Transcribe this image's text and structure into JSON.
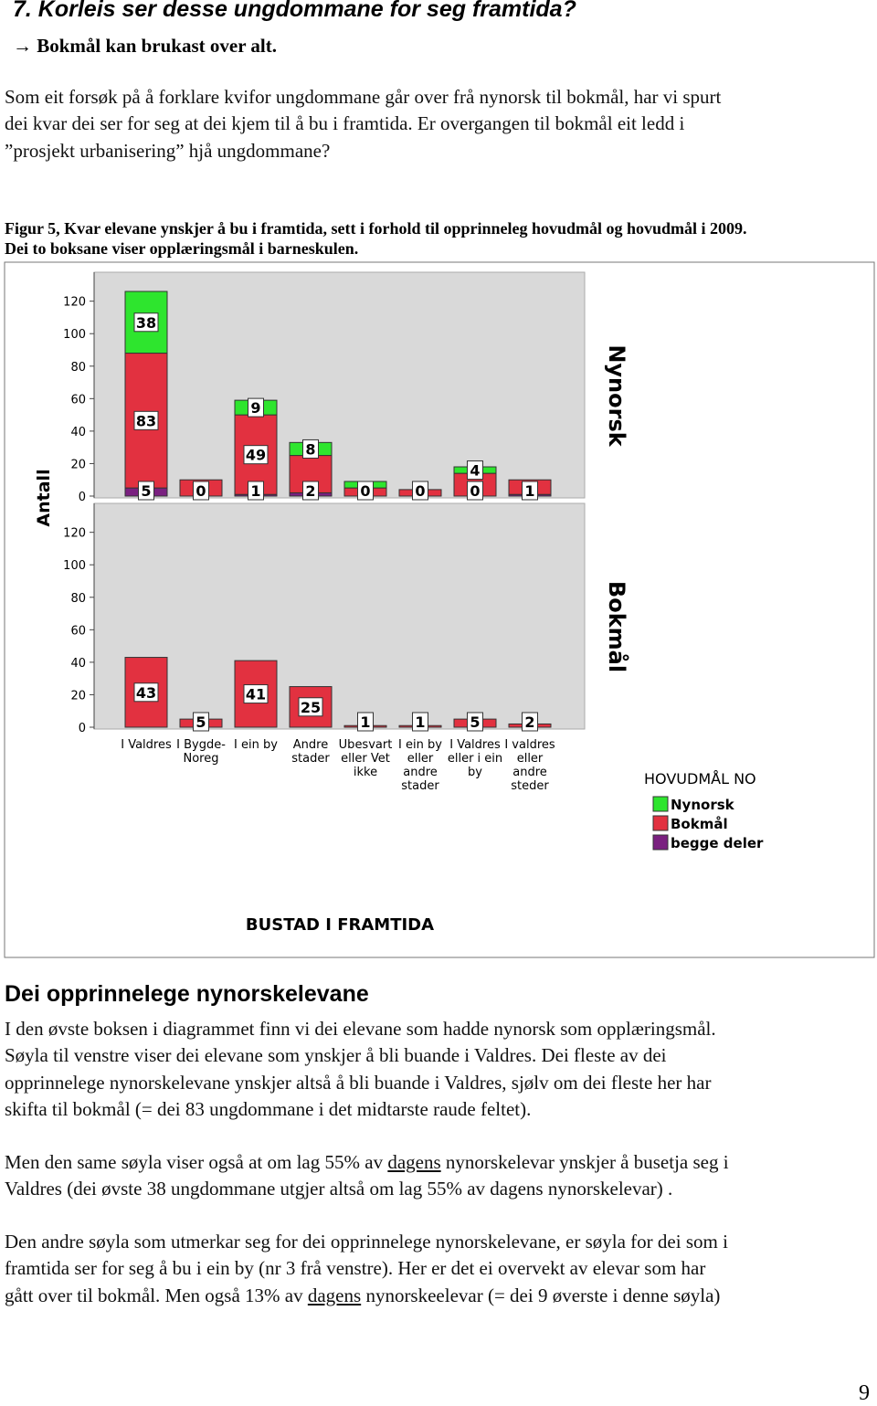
{
  "header": {
    "title": "7. Korleis ser desse ungdommane for seg framtida?",
    "subtitle": "→ Bokmål kan brukast over alt."
  },
  "intro": {
    "lines": [
      "Som eit forsøk på å forklare kvifor ungdommane går over frå nynorsk til bokmål, har vi spurt",
      "dei kvar dei ser for seg at dei kjem til å bu i framtida. Er overgangen til bokmål eit ledd i",
      "”prosjekt urbanisering” hjå ungdommane?"
    ]
  },
  "figure": {
    "caption": [
      "Figur 5, Kvar elevane ynskjer å bu i framtida, sett i forhold til opprinneleg hovudmål og hovudmål i 2009.",
      "Dei to boksane viser opplæringsmål i barneskulen."
    ]
  },
  "chart_data": {
    "type": "bar",
    "stacked": true,
    "ylabel": "Antall",
    "xlabel": "BUSTAD I FRAMTIDA",
    "legend_title": "HOVUDMÅL NO",
    "categories": [
      "I Valdres",
      "I Bygde-\nNoreg",
      "I ein by",
      "Andre\nstader",
      "Ubesvart\neller Vet\nikke",
      "I ein by\neller\nandre\nstader",
      "I Valdres\neller i ein\nby",
      "I valdres\neller\nandre\nsteder"
    ],
    "ylim": [
      0,
      135
    ],
    "yticks": [
      0,
      20,
      40,
      60,
      80,
      100,
      120
    ],
    "panels": [
      {
        "label": "Nynorsk",
        "series": [
          {
            "name": "Nynorsk",
            "color": "#2ee52e",
            "values": [
              38,
              0,
              9,
              8,
              4,
              0,
              4,
              0
            ],
            "value_labels": [
              "38",
              null,
              "9",
              "8",
              null,
              null,
              "4",
              null
            ]
          },
          {
            "name": "Bokmål",
            "color": "#e23140",
            "values": [
              83,
              10,
              49,
              23,
              5,
              4,
              14,
              9
            ],
            "value_labels": [
              "83",
              null,
              "49",
              null,
              null,
              null,
              null,
              null
            ]
          },
          {
            "name": "begge deler",
            "color": "#7a2080",
            "values": [
              5,
              0,
              1,
              2,
              0,
              0,
              0,
              1
            ],
            "value_labels": [
              "5",
              "0",
              "1",
              "2",
              "0",
              "0",
              "0",
              "1"
            ]
          }
        ]
      },
      {
        "label": "Bokmål",
        "series": [
          {
            "name": "Bokmål",
            "color": "#e23140",
            "values": [
              43,
              5,
              41,
              25,
              1,
              1,
              5,
              2
            ],
            "value_labels": [
              "43",
              "5",
              "41",
              "25",
              "1",
              "1",
              "5",
              "2"
            ]
          }
        ]
      }
    ]
  },
  "section": {
    "title": "Dei opprinnelege nynorskelevane",
    "paragraphs": [
      {
        "lines": [
          "I den øvste boksen i diagrammet finn vi dei elevane som hadde nynorsk som opplæringsmål.",
          "Søyla til venstre viser dei elevane som ynskjer å bli buande i Valdres. Dei fleste av dei",
          "opprinnelege nynorskelevane ynskjer altså å bli buande i Valdres, sjølv om dei fleste her har",
          "skifta til bokmål (= dei 83 ungdommane i det midtarste raude feltet)."
        ]
      },
      {
        "lines": [
          [
            {
              "text": "Men den same søyla viser også at om lag 55% av "
            },
            {
              "text": "dagens",
              "underline": true
            },
            {
              "text": " nynorskelevar ynskjer å busetja seg i"
            }
          ],
          "Valdres (dei øvste 38 ungdommane utgjer altså om lag 55% av dagens nynorskelevar) ."
        ]
      },
      {
        "lines": [
          "Den andre søyla som utmerkar seg for dei opprinnelege nynorskelevane, er søyla for dei som i",
          "framtida ser for seg å bu i ein by (nr 3 frå venstre). Her er det ei overvekt av elevar som har",
          [
            {
              "text": "gått over til bokmål. Men også 13% av "
            },
            {
              "text": "dagens",
              "underline": true
            },
            {
              "text": " nynorskeelevar (= dei 9 øverste i denne søyla)"
            }
          ]
        ]
      }
    ]
  },
  "page_number": 9
}
